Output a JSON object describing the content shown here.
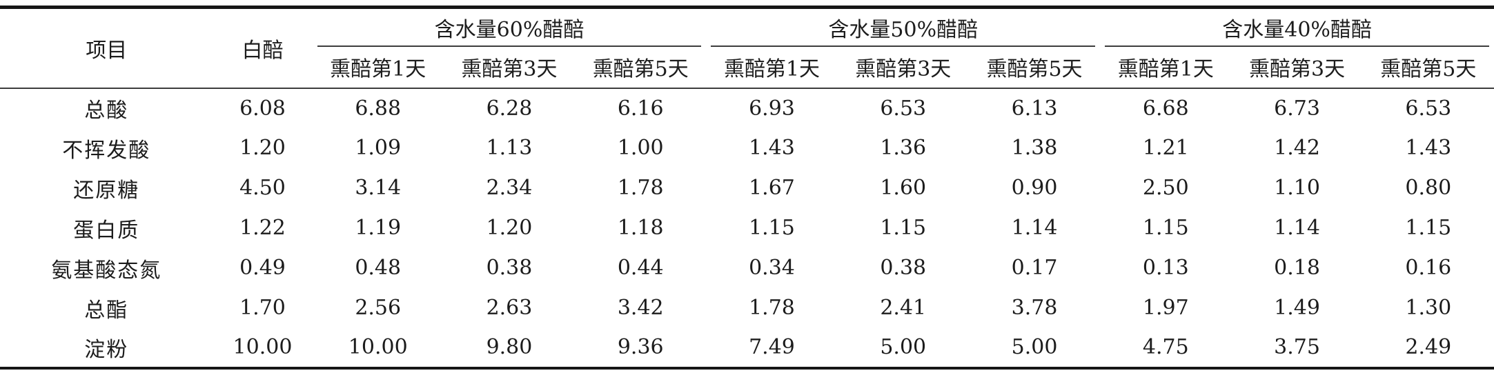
{
  "table": {
    "header": {
      "item_col": "项目",
      "baipei_col": "白醅",
      "groups": [
        {
          "label": "含水量60%醋醅"
        },
        {
          "label": "含水量50%醋醅"
        },
        {
          "label": "含水量40%醋醅"
        }
      ],
      "sub_columns": [
        "熏醅第1天",
        "熏醅第3天",
        "熏醅第5天"
      ]
    },
    "rows": [
      {
        "label": "总酸",
        "values": [
          "6.08",
          "6.88",
          "6.28",
          "6.16",
          "6.93",
          "6.53",
          "6.13",
          "6.68",
          "6.73",
          "6.53"
        ]
      },
      {
        "label": "不挥发酸",
        "values": [
          "1.20",
          "1.09",
          "1.13",
          "1.00",
          "1.43",
          "1.36",
          "1.38",
          "1.21",
          "1.42",
          "1.43"
        ]
      },
      {
        "label": "还原糖",
        "values": [
          "4.50",
          "3.14",
          "2.34",
          "1.78",
          "1.67",
          "1.60",
          "0.90",
          "2.50",
          "1.10",
          "0.80"
        ]
      },
      {
        "label": "蛋白质",
        "values": [
          "1.22",
          "1.19",
          "1.20",
          "1.18",
          "1.15",
          "1.15",
          "1.14",
          "1.15",
          "1.14",
          "1.15"
        ]
      },
      {
        "label": "氨基酸态氮",
        "values": [
          "0.49",
          "0.48",
          "0.38",
          "0.44",
          "0.34",
          "0.38",
          "0.17",
          "0.13",
          "0.18",
          "0.16"
        ]
      },
      {
        "label": "总酯",
        "values": [
          "1.70",
          "2.56",
          "2.63",
          "3.42",
          "1.78",
          "2.41",
          "3.78",
          "1.97",
          "1.49",
          "1.30"
        ]
      },
      {
        "label": "淀粉",
        "values": [
          "10.00",
          "10.00",
          "9.80",
          "9.36",
          "7.49",
          "5.00",
          "5.00",
          "4.75",
          "3.75",
          "2.49"
        ]
      }
    ]
  },
  "colors": {
    "text": "#1c1c1c",
    "thick_rule": "#161616",
    "thin_rule": "#3c3c3c",
    "background": "#ffffff"
  },
  "chart_data": {
    "type": "table",
    "title": "",
    "row_header": "项目",
    "columns": [
      "白醅",
      "含水量60%醋醅-熏醅第1天",
      "含水量60%醋醅-熏醅第3天",
      "含水量60%醋醅-熏醅第5天",
      "含水量50%醋醅-熏醅第1天",
      "含水量50%醋醅-熏醅第3天",
      "含水量50%醋醅-熏醅第5天",
      "含水量40%醋醅-熏醅第1天",
      "含水量40%醋醅-熏醅第3天",
      "含水量40%醋醅-熏醅第5天"
    ],
    "rows": [
      [
        "总酸",
        6.08,
        6.88,
        6.28,
        6.16,
        6.93,
        6.53,
        6.13,
        6.68,
        6.73,
        6.53
      ],
      [
        "不挥发酸",
        1.2,
        1.09,
        1.13,
        1.0,
        1.43,
        1.36,
        1.38,
        1.21,
        1.42,
        1.43
      ],
      [
        "还原糖",
        4.5,
        3.14,
        2.34,
        1.78,
        1.67,
        1.6,
        0.9,
        2.5,
        1.1,
        0.8
      ],
      [
        "蛋白质",
        1.22,
        1.19,
        1.2,
        1.18,
        1.15,
        1.15,
        1.14,
        1.15,
        1.14,
        1.15
      ],
      [
        "氨基酸态氮",
        0.49,
        0.48,
        0.38,
        0.44,
        0.34,
        0.38,
        0.17,
        0.13,
        0.18,
        0.16
      ],
      [
        "总酯",
        1.7,
        2.56,
        2.63,
        3.42,
        1.78,
        2.41,
        3.78,
        1.97,
        1.49,
        1.3
      ],
      [
        "淀粉",
        10.0,
        10.0,
        9.8,
        9.36,
        7.49,
        5.0,
        5.0,
        4.75,
        3.75,
        2.49
      ]
    ]
  }
}
